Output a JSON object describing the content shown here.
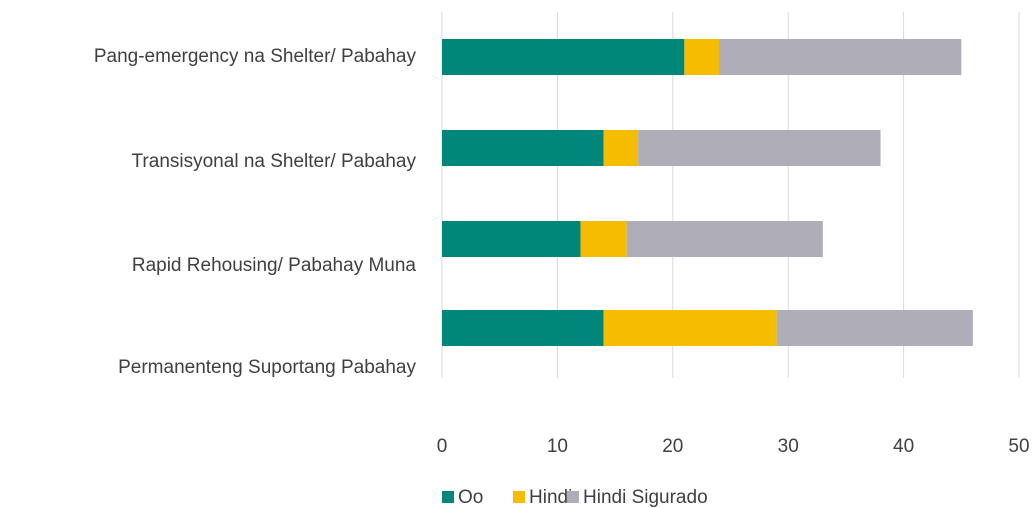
{
  "chart_data": {
    "type": "stacked-bar-horizontal",
    "categories": [
      "Pang-emergency na Shelter/ Pabahay",
      "Transisyonal na Shelter/ Pabahay",
      "Rapid Rehousing/ Pabahay Muna",
      "Permanenteng Suportang Pabahay"
    ],
    "series": [
      {
        "name": "Oo",
        "color": "#00877a",
        "values": [
          21,
          14,
          12,
          14
        ]
      },
      {
        "name": "Hindi",
        "color": "#f5bc00",
        "values": [
          3,
          3,
          4,
          15
        ]
      },
      {
        "name": "Hindi Sigurado",
        "color": "#aeadb8",
        "values": [
          21,
          21,
          17,
          17
        ]
      }
    ],
    "xlim": [
      0,
      50
    ],
    "xticks": [
      0,
      10,
      20,
      30,
      40,
      50
    ],
    "grid": true,
    "legend": "bottom"
  }
}
